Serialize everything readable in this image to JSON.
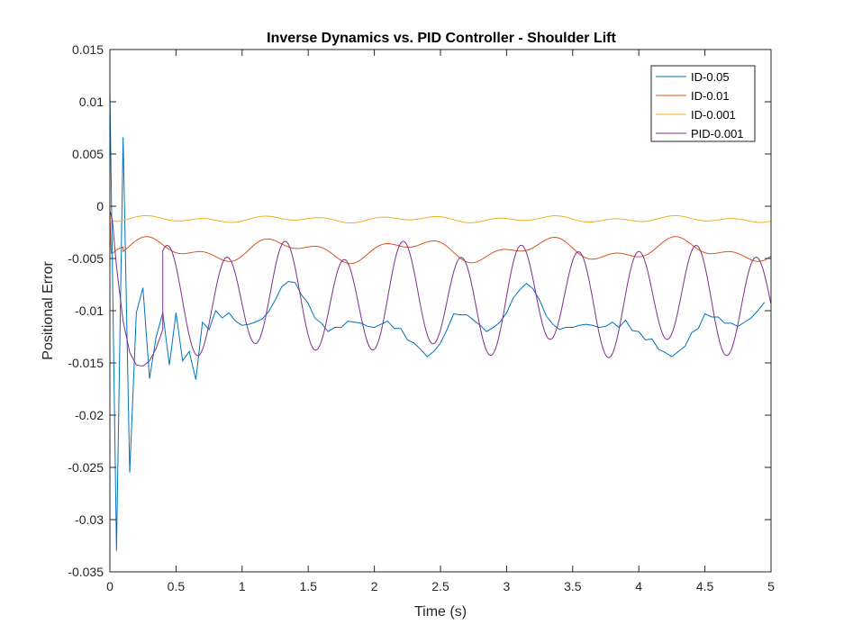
{
  "chart_data": {
    "type": "line",
    "title": "Inverse Dynamics vs. PID Controller - Shoulder Lift",
    "xlabel": "Time (s)",
    "ylabel": "Positional Error",
    "xlim": [
      0,
      5
    ],
    "ylim": [
      -0.035,
      0.015
    ],
    "xticks": [
      0,
      0.5,
      1,
      1.5,
      2,
      2.5,
      3,
      3.5,
      4,
      4.5,
      5
    ],
    "xtick_labels": [
      "0",
      "0.5",
      "1",
      "1.5",
      "2",
      "2.5",
      "3",
      "3.5",
      "4",
      "4.5",
      "5"
    ],
    "yticks": [
      -0.035,
      -0.03,
      -0.025,
      -0.02,
      -0.015,
      -0.01,
      -0.005,
      0,
      0.005,
      0.01,
      0.015
    ],
    "ytick_labels": [
      "-0.035",
      "-0.03",
      "-0.025",
      "-0.02",
      "-0.015",
      "-0.01",
      "-0.005",
      "0",
      "0.005",
      "0.01",
      "0.015"
    ],
    "grid": false,
    "legend_position": "top-right",
    "series": [
      {
        "name": "ID-0.05",
        "color": "#0072BD",
        "x": [
          0,
          0.05,
          0.1,
          0.15,
          0.2,
          0.25,
          0.3,
          0.35,
          0.4,
          0.45,
          0.5,
          0.55,
          0.6,
          0.65,
          0.7,
          0.75,
          0.8,
          0.85,
          0.9,
          0.95,
          1.0,
          1.05,
          1.1,
          1.15,
          1.2,
          1.25,
          1.3,
          1.35,
          1.4,
          1.45,
          1.5,
          1.55,
          1.6,
          1.65,
          1.7,
          1.75,
          1.8,
          1.85,
          1.9,
          1.95,
          2.0,
          2.05,
          2.1,
          2.15,
          2.2,
          2.25,
          2.3,
          2.35,
          2.4,
          2.45,
          2.5,
          2.55,
          2.6,
          2.65,
          2.7,
          2.75,
          2.8,
          2.85,
          2.9,
          2.95,
          3.0,
          3.05,
          3.1,
          3.15,
          3.2,
          3.25,
          3.3,
          3.35,
          3.4,
          3.45,
          3.5,
          3.55,
          3.6,
          3.65,
          3.7,
          3.75,
          3.8,
          3.85,
          3.9,
          3.95,
          4.0,
          4.05,
          4.1,
          4.15,
          4.2,
          4.25,
          4.3,
          4.35,
          4.4,
          4.45,
          4.5,
          4.55,
          4.6,
          4.65,
          4.7,
          4.75,
          4.8,
          4.85,
          4.9,
          4.95
        ],
        "y": [
          0.011,
          -0.033,
          0.0066,
          -0.0255,
          -0.0102,
          -0.0078,
          -0.0165,
          -0.0125,
          -0.0102,
          -0.0152,
          -0.0102,
          -0.0148,
          -0.0139,
          -0.0166,
          -0.0111,
          -0.0118,
          -0.01,
          -0.0107,
          -0.0102,
          -0.011,
          -0.0114,
          -0.0113,
          -0.0111,
          -0.0108,
          -0.0101,
          -0.009,
          -0.0077,
          -0.0072,
          -0.0073,
          -0.0085,
          -0.0093,
          -0.0107,
          -0.0112,
          -0.012,
          -0.0116,
          -0.0116,
          -0.011,
          -0.0111,
          -0.0112,
          -0.0115,
          -0.0116,
          -0.0113,
          -0.011,
          -0.0117,
          -0.0117,
          -0.0128,
          -0.0131,
          -0.0137,
          -0.0144,
          -0.0139,
          -0.0131,
          -0.0118,
          -0.0103,
          -0.0104,
          -0.0104,
          -0.0109,
          -0.0114,
          -0.012,
          -0.0116,
          -0.0111,
          -0.0102,
          -0.0088,
          -0.008,
          -0.0074,
          -0.0079,
          -0.009,
          -0.0105,
          -0.0113,
          -0.0118,
          -0.0116,
          -0.0116,
          -0.0114,
          -0.0113,
          -0.0114,
          -0.0116,
          -0.0115,
          -0.0111,
          -0.0116,
          -0.0109,
          -0.0119,
          -0.012,
          -0.0128,
          -0.0127,
          -0.0137,
          -0.014,
          -0.0144,
          -0.0139,
          -0.0134,
          -0.0121,
          -0.0117,
          -0.0103,
          -0.0106,
          -0.0106,
          -0.0112,
          -0.0112,
          -0.0115,
          -0.0111,
          -0.0107,
          -0.01,
          -0.0092
        ]
      },
      {
        "name": "ID-0.01",
        "color": "#D95319",
        "x": [
          0,
          0.01,
          0.02,
          0.04,
          0.06,
          0.08,
          0.1
        ],
        "y": [
          -0.001,
          -0.0045,
          -0.0045,
          -0.0043,
          -0.0041,
          -0.004,
          -0.0039
        ],
        "wave": {
          "x_start": 0.1,
          "x_end": 5.0,
          "center": -0.0042,
          "amp1": 0.0008,
          "f1": 1.0,
          "amp2": 0.0005,
          "f2": 2.25
        }
      },
      {
        "name": "ID-0.001",
        "color": "#EDB120",
        "x": [
          0,
          0.01,
          0.02,
          0.04
        ],
        "y": [
          -0.0004,
          -0.0012,
          -0.0014,
          -0.0014
        ],
        "wave": {
          "x_start": 0.04,
          "x_end": 5.0,
          "center": -0.00125,
          "amp1": 0.00015,
          "f1": 1.0,
          "amp2": 0.0002,
          "f2": 2.25
        }
      },
      {
        "name": "PID-0.001",
        "color": "#7E2F8E",
        "x": [
          0,
          0.01,
          0.02,
          0.05,
          0.1,
          0.15,
          0.2,
          0.25,
          0.3,
          0.35,
          0.4
        ],
        "y": [
          -0.0005,
          -0.0008,
          -0.0015,
          -0.0058,
          -0.011,
          -0.014,
          -0.0152,
          -0.0153,
          -0.0148,
          -0.0136,
          -0.0118
        ],
        "wave": {
          "x_start": 0.4,
          "x_end": 5.0,
          "center": -0.0089,
          "amp1": 0.0047,
          "f1": 2.25,
          "amp2": 0.0009,
          "f2": 1.0
        }
      }
    ]
  }
}
